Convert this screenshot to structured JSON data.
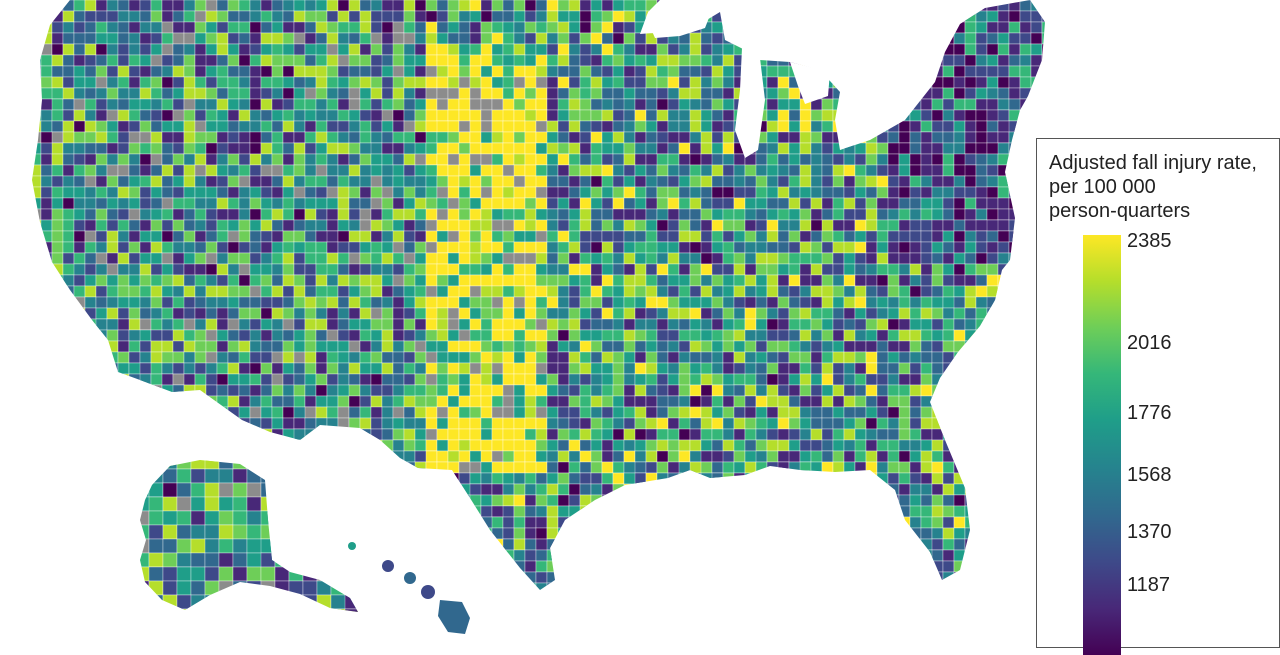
{
  "map": {
    "region": "United States counties",
    "colormap": [
      "#fde725",
      "#b5de2b",
      "#6ece58",
      "#35b779",
      "#1f9e89",
      "#26828e",
      "#31688e",
      "#3e4989",
      "#482878",
      "#440154"
    ],
    "no_data_color": "#8c8c8c"
  },
  "legend": {
    "title_lines": [
      "Adjusted fall injury rate,",
      "per 100 000",
      "person-quarters"
    ],
    "max_label": "2385",
    "ticks": [
      {
        "label": "2385",
        "value": 2385
      },
      {
        "label": "2016",
        "value": 2016
      },
      {
        "label": "1776",
        "value": 1776
      },
      {
        "label": "1568",
        "value": 1568
      },
      {
        "label": "1370",
        "value": 1370
      },
      {
        "label": "1187",
        "value": 1187
      }
    ]
  }
}
